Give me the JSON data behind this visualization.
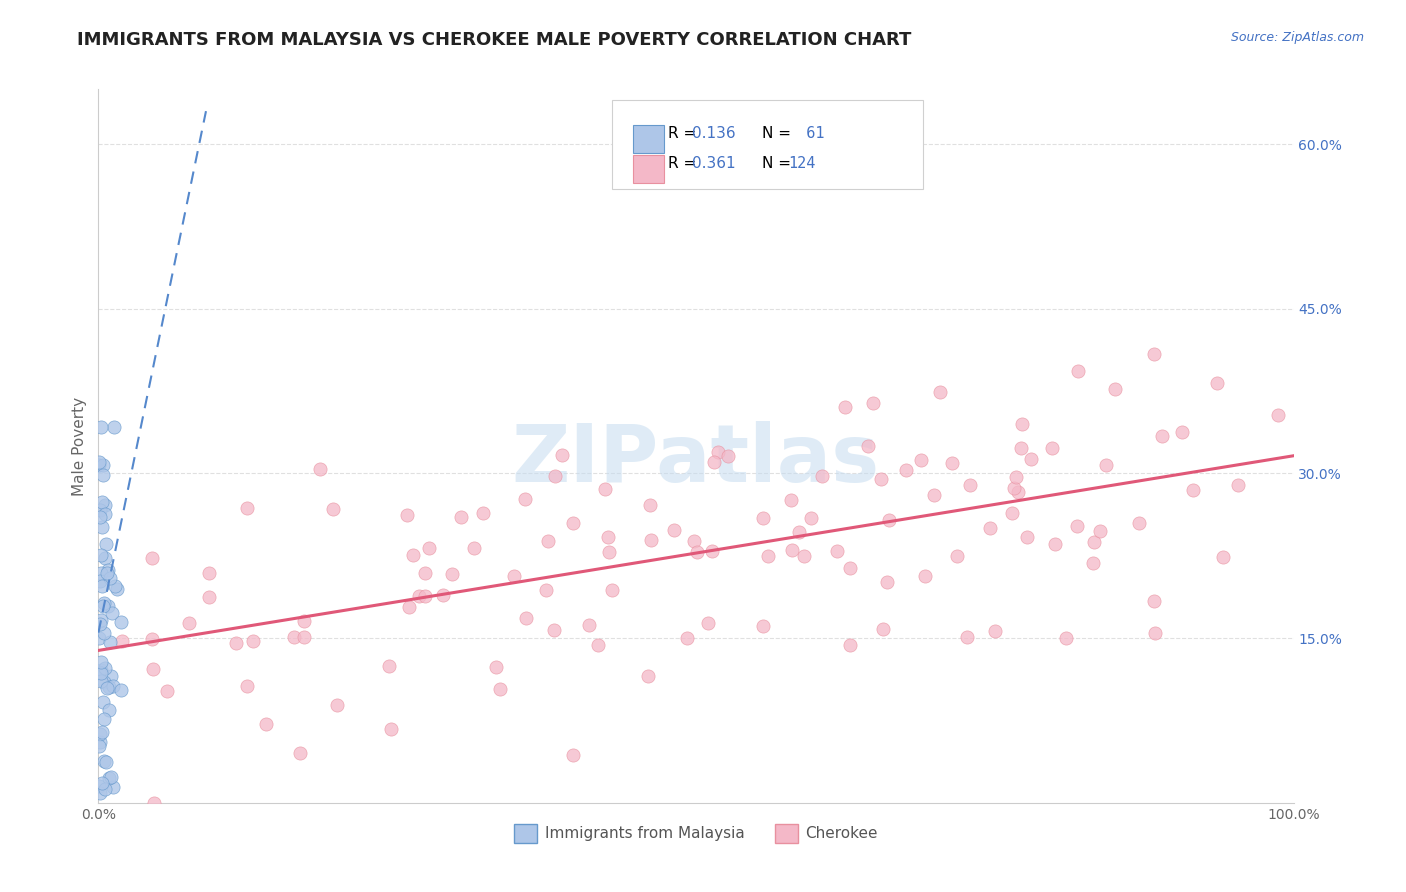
{
  "title": "IMMIGRANTS FROM MALAYSIA VS CHEROKEE MALE POVERTY CORRELATION CHART",
  "source_text": "Source: ZipAtlas.com",
  "ylabel": "Male Poverty",
  "watermark": "ZIPatlas",
  "xlim": [
    0,
    100
  ],
  "ylim": [
    0,
    65
  ],
  "ytick_positions": [
    15,
    30,
    45,
    60
  ],
  "ytick_labels": [
    "15.0%",
    "30.0%",
    "45.0%",
    "60.0%"
  ],
  "color_blue_fill": "#aec6e8",
  "color_blue_edge": "#6699cc",
  "color_pink_fill": "#f4b8c8",
  "color_pink_edge": "#e8909f",
  "color_blue_text": "#4472c4",
  "color_trend_blue": "#5588cc",
  "color_trend_pink": "#e05878",
  "color_grid": "#e0e0e0",
  "background_color": "#ffffff",
  "r_blue": "0.136",
  "n_blue": "61",
  "r_pink": "0.361",
  "n_pink": "124",
  "legend1_label": "Immigrants from Malaysia",
  "legend2_label": "Cherokee",
  "title_fontsize": 13,
  "tick_fontsize": 10,
  "ylabel_fontsize": 11,
  "legend_fontsize": 11
}
